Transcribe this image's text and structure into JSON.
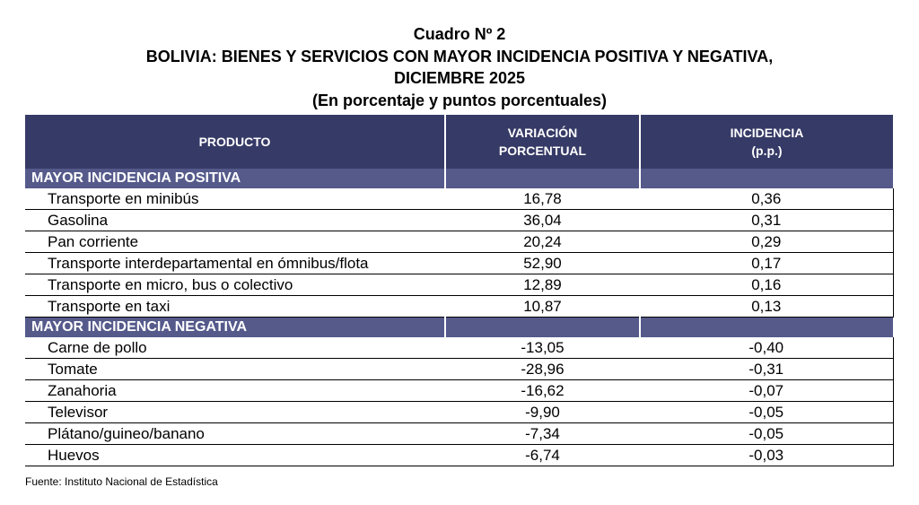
{
  "header": {
    "title": "Cuadro Nº 2",
    "subtitle_lines": [
      "BOLIVIA: BIENES Y SERVICIOS CON MAYOR INCIDENCIA POSITIVA Y NEGATIVA,",
      "DICIEMBRE 2025"
    ],
    "units": "(En porcentaje y puntos porcentuales)"
  },
  "table": {
    "columns": [
      [
        "PRODUCTO"
      ],
      [
        "VARIACIÓN",
        "PORCENTUAL"
      ],
      [
        "INCIDENCIA",
        "(p.p.)"
      ]
    ],
    "sections": [
      {
        "label": "MAYOR INCIDENCIA POSITIVA",
        "rows": [
          [
            "Transporte en minibús",
            "16,78",
            "0,36"
          ],
          [
            "Gasolina",
            "36,04",
            "0,31"
          ],
          [
            "Pan corriente",
            "20,24",
            "0,29"
          ],
          [
            "Transporte interdepartamental en ómnibus/flota",
            "52,90",
            "0,17"
          ],
          [
            "Transporte en micro, bus o colectivo",
            "12,89",
            "0,16"
          ],
          [
            "Transporte en taxi",
            "10,87",
            "0,13"
          ]
        ]
      },
      {
        "label": "MAYOR INCIDENCIA NEGATIVA",
        "rows": [
          [
            "Carne de pollo",
            "-13,05",
            "-0,40"
          ],
          [
            "Tomate",
            "-28,96",
            "-0,31"
          ],
          [
            "Zanahoria",
            "-16,62",
            "-0,07"
          ],
          [
            "Televisor",
            "-9,90",
            "-0,05"
          ],
          [
            "Plátano/guineo/banano",
            "-7,34",
            "-0,05"
          ],
          [
            "Huevos",
            "-6,74",
            "-0,03"
          ]
        ]
      }
    ]
  },
  "source": "Fuente: Instituto Nacional de Estadística"
}
